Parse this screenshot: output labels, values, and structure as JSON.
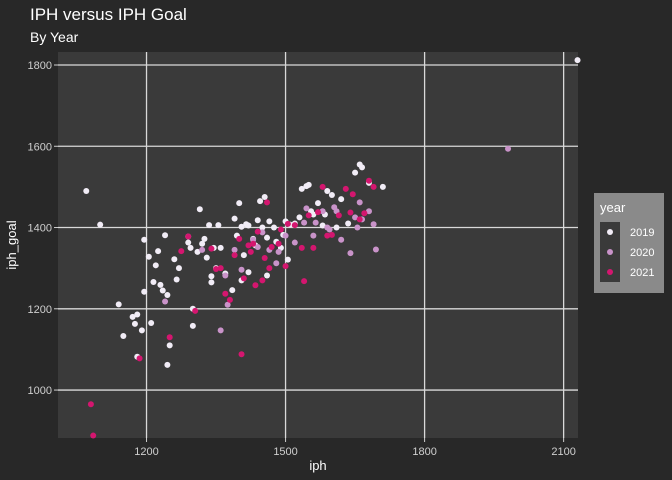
{
  "chart_data": {
    "type": "scatter",
    "title": "IPH versus IPH Goal",
    "subtitle": "By Year",
    "xlabel": "iph",
    "ylabel": "iph_goal",
    "xlim": [
      1009,
      2131
    ],
    "ylim": [
      882,
      1832
    ],
    "xticks": [
      1200,
      1500,
      1800,
      2100
    ],
    "yticks": [
      1000,
      1200,
      1400,
      1600,
      1800
    ],
    "grid": true,
    "legend_position": "right",
    "legend": {
      "title": "year",
      "entries": [
        {
          "label": "2019",
          "color": "#f1ecf6"
        },
        {
          "label": "2020",
          "color": "#c993c9"
        },
        {
          "label": "2021",
          "color": "#d4166f"
        }
      ]
    },
    "colors": {
      "background": "#282828",
      "panel": "#3a3a3a",
      "grid": "#d9d9d9",
      "legend_box": "#8a8a8a",
      "legend_key": "#3a3a3a"
    },
    "series": [
      {
        "name": "2019",
        "points": [
          [
            1070,
            1490
          ],
          [
            1100,
            1407
          ],
          [
            1140,
            1211
          ],
          [
            1150,
            1133
          ],
          [
            1170,
            1180
          ],
          [
            1175,
            1163
          ],
          [
            1180,
            1186
          ],
          [
            1180,
            1082
          ],
          [
            1190,
            1147
          ],
          [
            1195,
            1242
          ],
          [
            1195,
            1370
          ],
          [
            1205,
            1328
          ],
          [
            1210,
            1165
          ],
          [
            1215,
            1266
          ],
          [
            1220,
            1307
          ],
          [
            1225,
            1342
          ],
          [
            1230,
            1259
          ],
          [
            1235,
            1245
          ],
          [
            1240,
            1381
          ],
          [
            1245,
            1234
          ],
          [
            1245,
            1062
          ],
          [
            1250,
            1110
          ],
          [
            1260,
            1322
          ],
          [
            1265,
            1272
          ],
          [
            1270,
            1300
          ],
          [
            1290,
            1363
          ],
          [
            1295,
            1350
          ],
          [
            1300,
            1200
          ],
          [
            1300,
            1158
          ],
          [
            1310,
            1340
          ],
          [
            1315,
            1445
          ],
          [
            1320,
            1360
          ],
          [
            1325,
            1372
          ],
          [
            1330,
            1326
          ],
          [
            1335,
            1406
          ],
          [
            1340,
            1280
          ],
          [
            1340,
            1265
          ],
          [
            1345,
            1350
          ],
          [
            1350,
            1300
          ],
          [
            1355,
            1406
          ],
          [
            1360,
            1350
          ],
          [
            1370,
            1287
          ],
          [
            1385,
            1246
          ],
          [
            1390,
            1422
          ],
          [
            1395,
            1380
          ],
          [
            1400,
            1460
          ],
          [
            1405,
            1402
          ],
          [
            1405,
            1270
          ],
          [
            1410,
            1332
          ],
          [
            1415,
            1408
          ],
          [
            1420,
            1405
          ],
          [
            1420,
            1290
          ],
          [
            1430,
            1372
          ],
          [
            1435,
            1356
          ],
          [
            1440,
            1418
          ],
          [
            1445,
            1465
          ],
          [
            1450,
            1400
          ],
          [
            1455,
            1475
          ],
          [
            1460,
            1375
          ],
          [
            1460,
            1282
          ],
          [
            1465,
            1415
          ],
          [
            1475,
            1400
          ],
          [
            1480,
            1365
          ],
          [
            1490,
            1350
          ],
          [
            1495,
            1382
          ],
          [
            1500,
            1415
          ],
          [
            1505,
            1321
          ],
          [
            1510,
            1407
          ],
          [
            1520,
            1410
          ],
          [
            1530,
            1425
          ],
          [
            1535,
            1495
          ],
          [
            1545,
            1502
          ],
          [
            1550,
            1505
          ],
          [
            1555,
            1440
          ],
          [
            1560,
            1432
          ],
          [
            1570,
            1460
          ],
          [
            1580,
            1405
          ],
          [
            1585,
            1432
          ],
          [
            1590,
            1490
          ],
          [
            1600,
            1480
          ],
          [
            1610,
            1400
          ],
          [
            1620,
            1470
          ],
          [
            1635,
            1410
          ],
          [
            1650,
            1535
          ],
          [
            1660,
            1555
          ],
          [
            1665,
            1548
          ],
          [
            1680,
            1510
          ],
          [
            1710,
            1500
          ],
          [
            2130,
            1812
          ]
        ]
      },
      {
        "name": "2020",
        "points": [
          [
            1240,
            1218
          ],
          [
            1290,
            1378
          ],
          [
            1320,
            1345
          ],
          [
            1360,
            1147
          ],
          [
            1370,
            1282
          ],
          [
            1375,
            1210
          ],
          [
            1390,
            1345
          ],
          [
            1405,
            1296
          ],
          [
            1430,
            1370
          ],
          [
            1440,
            1352
          ],
          [
            1450,
            1388
          ],
          [
            1465,
            1345
          ],
          [
            1480,
            1312
          ],
          [
            1485,
            1340
          ],
          [
            1500,
            1380
          ],
          [
            1520,
            1363
          ],
          [
            1540,
            1412
          ],
          [
            1545,
            1447
          ],
          [
            1560,
            1380
          ],
          [
            1565,
            1412
          ],
          [
            1580,
            1440
          ],
          [
            1590,
            1400
          ],
          [
            1595,
            1395
          ],
          [
            1605,
            1450
          ],
          [
            1610,
            1440
          ],
          [
            1620,
            1370
          ],
          [
            1640,
            1337
          ],
          [
            1650,
            1425
          ],
          [
            1655,
            1400
          ],
          [
            1660,
            1462
          ],
          [
            1665,
            1420
          ],
          [
            1680,
            1440
          ],
          [
            1690,
            1408
          ],
          [
            1695,
            1346
          ],
          [
            1980,
            1594
          ]
        ]
      },
      {
        "name": "2021",
        "points": [
          [
            1080,
            965
          ],
          [
            1085,
            888
          ],
          [
            1185,
            1078
          ],
          [
            1250,
            1130
          ],
          [
            1275,
            1342
          ],
          [
            1290,
            1378
          ],
          [
            1305,
            1195
          ],
          [
            1340,
            1348
          ],
          [
            1350,
            1298
          ],
          [
            1360,
            1300
          ],
          [
            1370,
            1237
          ],
          [
            1380,
            1222
          ],
          [
            1390,
            1332
          ],
          [
            1400,
            1372
          ],
          [
            1405,
            1088
          ],
          [
            1410,
            1275
          ],
          [
            1420,
            1356
          ],
          [
            1425,
            1340
          ],
          [
            1430,
            1360
          ],
          [
            1435,
            1258
          ],
          [
            1440,
            1390
          ],
          [
            1450,
            1270
          ],
          [
            1455,
            1325
          ],
          [
            1460,
            1462
          ],
          [
            1465,
            1300
          ],
          [
            1470,
            1352
          ],
          [
            1485,
            1360
          ],
          [
            1490,
            1395
          ],
          [
            1500,
            1305
          ],
          [
            1505,
            1409
          ],
          [
            1520,
            1406
          ],
          [
            1535,
            1350
          ],
          [
            1540,
            1268
          ],
          [
            1550,
            1430
          ],
          [
            1560,
            1350
          ],
          [
            1570,
            1438
          ],
          [
            1580,
            1500
          ],
          [
            1590,
            1380
          ],
          [
            1600,
            1382
          ],
          [
            1615,
            1430
          ],
          [
            1630,
            1495
          ],
          [
            1640,
            1437
          ],
          [
            1645,
            1482
          ],
          [
            1660,
            1420
          ],
          [
            1670,
            1435
          ],
          [
            1680,
            1515
          ],
          [
            1690,
            1500
          ]
        ]
      }
    ]
  }
}
